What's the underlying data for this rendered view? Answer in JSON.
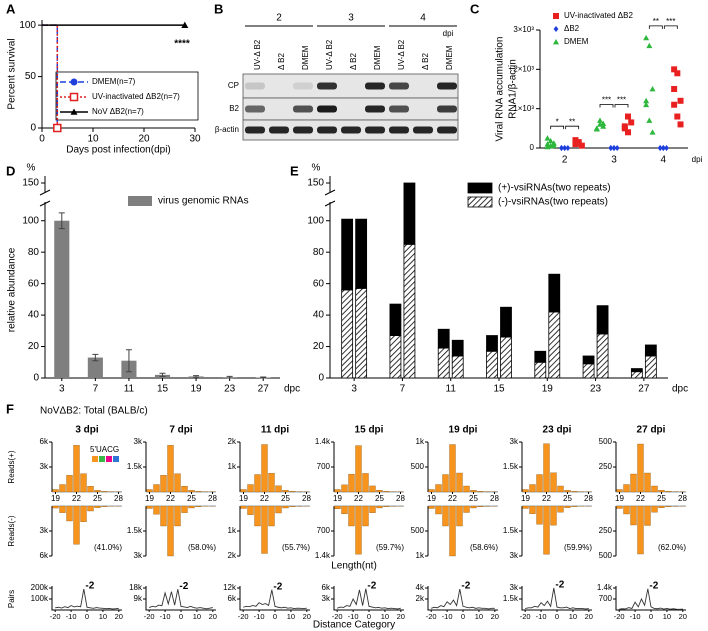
{
  "panel_labels": [
    "A",
    "B",
    "C",
    "D",
    "E",
    "F"
  ],
  "blot": {
    "days": [
      "2",
      "3",
      "4"
    ],
    "unit": "dpi",
    "lanes": [
      "UV-Δ B2",
      "Δ B2",
      "DMEM"
    ],
    "rows": [
      "CP",
      "B2",
      "β-actin"
    ]
  },
  "chart_data": [
    {
      "type": "line",
      "xlabel": "Days post infection(dpi)",
      "ylabel": "Percent survival",
      "annotation": "****",
      "xlim": [
        0,
        30
      ],
      "ylim": [
        0,
        105
      ],
      "xticks": [
        0,
        10,
        20,
        30
      ],
      "yticks": [
        0,
        50,
        100
      ],
      "series": [
        {
          "name": "DMEM(n=7)",
          "color": "#1f3fdc",
          "marker": "circle",
          "line_style": "dashed",
          "x": [
            0,
            3,
            3
          ],
          "values": [
            100,
            100,
            0
          ]
        },
        {
          "name": "UV-inactivated ΔB2(n=7)",
          "color": "#e02020",
          "marker": "open-square",
          "line_style": "dotted",
          "x": [
            0,
            3,
            3
          ],
          "values": [
            100,
            100,
            0
          ]
        },
        {
          "name": "NoV ΔB2(n=7)",
          "color": "#000000",
          "marker": "triangle",
          "line_style": "solid",
          "x": [
            0,
            28
          ],
          "values": [
            100,
            100
          ]
        }
      ]
    },
    {
      "type": "scatter",
      "ylabel": [
        "Viral RNA accumulation",
        "RNA1/β-actin"
      ],
      "xunit": "dpi",
      "categories": [
        "2",
        "3",
        "4"
      ],
      "ylim": [
        0,
        3000
      ],
      "yticks": [
        0,
        {
          "value": 1000,
          "label": "1×10³"
        },
        {
          "value": 2000,
          "label": "2×10³"
        },
        {
          "value": 3000,
          "label": "3×10³"
        }
      ],
      "series": [
        {
          "name": "UV-inactivated ΔB2",
          "color": "#e82020",
          "marker": "square",
          "values": [
            [
              100,
              150,
              60,
              200,
              120
            ],
            [
              500,
              800,
              650,
              550,
              400
            ],
            [
              2000,
              1900,
              1200,
              1100,
              800,
              600,
              1500
            ]
          ]
        },
        {
          "name": "ΔB2",
          "color": "#1f3fdc",
          "marker": "diamond",
          "values": [
            [
              0,
              0,
              0,
              0,
              0
            ],
            [
              0,
              0,
              0,
              0,
              0
            ],
            [
              0,
              0,
              0,
              0,
              0
            ]
          ]
        },
        {
          "name": "DMEM",
          "color": "#2db83d",
          "marker": "triangle",
          "values": [
            [
              100,
              180,
              60,
              250,
              50,
              120,
              30
            ],
            [
              500,
              600,
              550,
              480,
              700,
              620
            ],
            [
              2800,
              2600,
              1500,
              1100,
              700,
              400,
              1200
            ]
          ]
        }
      ],
      "significance": [
        [
          "*",
          "**"
        ],
        [
          "***",
          "***"
        ],
        [
          "**",
          "***"
        ]
      ]
    },
    {
      "type": "bar",
      "ylabel": "relative abundance",
      "yunit": "%",
      "xunit": "dpc",
      "categories": [
        "3",
        "7",
        "11",
        "15",
        "19",
        "23",
        "27"
      ],
      "ylim": [
        0,
        160
      ],
      "ybreak": [
        110,
        140
      ],
      "yticks": [
        0,
        20,
        40,
        60,
        80,
        100,
        150
      ],
      "series": [
        {
          "name": "virus genomic RNAs",
          "color": "#7f7f7f",
          "values": [
            100,
            13,
            11,
            2,
            1,
            0.5,
            0.3
          ],
          "errors": [
            5,
            2,
            7,
            1,
            0.5,
            0.5,
            0.3
          ]
        }
      ]
    },
    {
      "type": "stacked_bar",
      "yunit": "%",
      "xunit": "dpc",
      "categories": [
        "3",
        "7",
        "11",
        "15",
        "19",
        "23",
        "27"
      ],
      "ylim": [
        0,
        160
      ],
      "ybreak": [
        110,
        140
      ],
      "yticks": [
        0,
        20,
        40,
        60,
        80,
        100,
        150
      ],
      "series": [
        {
          "name": "(+)-vsiRNAs(two repeats)",
          "color": "#000000",
          "pattern": "solid",
          "values": [
            [
              45,
              44
            ],
            [
              20,
              65
            ],
            [
              12,
              10
            ],
            [
              10,
              19
            ],
            [
              7,
              24
            ],
            [
              5,
              18
            ],
            [
              2,
              7
            ]
          ]
        },
        {
          "name": "(-)-vsiRNAs(two repeats)",
          "color": "#000000",
          "pattern": "hatch",
          "values": [
            [
              56,
              57
            ],
            [
              27,
              85
            ],
            [
              19,
              14
            ],
            [
              17,
              26
            ],
            [
              10,
              42
            ],
            [
              9,
              28
            ],
            [
              4,
              14
            ]
          ]
        }
      ]
    },
    {
      "type": "small_multiples",
      "title": "NoVΔB2: Total (BALB/c)",
      "reads_plus_label": "Reads(+)",
      "reads_minus_label": "Reads(-)",
      "length_label": "Length(nt)",
      "pairs_label": "Pairs",
      "distance_label": "Distance Category",
      "nucleotide_legend": "5'UACG",
      "nucleotide_colors": [
        "#f7941d",
        "#39b54a",
        "#ec008c",
        "#2e75d6"
      ],
      "bar_color": "#f7941d",
      "line_color": "#333333",
      "peak_label": "-2",
      "length_x": [
        19,
        20,
        21,
        22,
        23,
        24,
        25,
        26,
        27,
        28
      ],
      "length_xlim": [
        18.5,
        28.5
      ],
      "length_xticks": [
        19,
        22,
        25,
        28
      ],
      "distance_x": [
        -20,
        -18,
        -16,
        -14,
        -12,
        -10,
        -8,
        -6,
        -4,
        -2,
        0,
        2,
        4,
        6,
        8,
        10,
        12,
        14,
        16,
        18,
        20
      ],
      "distance_xlim": [
        -22,
        22
      ],
      "distance_xticks": [
        -20,
        -10,
        0,
        10,
        20
      ],
      "panels": [
        {
          "title": "3 dpi",
          "percent": "(41.0%)",
          "reads_ylim": [
            0,
            6000
          ],
          "reads_yticks": [
            {
              "value": 3000,
              "label": "3k"
            },
            {
              "value": 6000,
              "label": "6k"
            }
          ],
          "plus": [
            300,
            900,
            2000,
            5600,
            2200,
            700,
            200,
            80,
            40,
            20
          ],
          "minus": [
            250,
            800,
            1800,
            4600,
            1900,
            600,
            200,
            80,
            40,
            20
          ],
          "pairs_ylim": [
            0,
            200000
          ],
          "pairs_yticks": [
            {
              "value": 100000,
              "label": "100k"
            },
            {
              "value": 200000,
              "label": "200k"
            }
          ],
          "pairs": [
            20000,
            25000,
            18000,
            30000,
            22000,
            40000,
            28000,
            35000,
            30000,
            190000,
            25000,
            20000,
            15000,
            22000,
            18000,
            15000,
            12000,
            14000,
            10000,
            12000,
            15000
          ]
        },
        {
          "title": "7 dpi",
          "percent": "(58.0%)",
          "reads_ylim": [
            0,
            3000
          ],
          "reads_yticks": [
            {
              "value": 1500,
              "label": "1.5k"
            },
            {
              "value": 3000,
              "label": "3k"
            }
          ],
          "plus": [
            150,
            450,
            1000,
            2800,
            1100,
            350,
            100,
            40,
            20,
            10
          ],
          "minus": [
            150,
            500,
            1200,
            3000,
            1200,
            400,
            120,
            50,
            20,
            10
          ],
          "pairs_ylim": [
            0,
            18000
          ],
          "pairs_yticks": [
            {
              "value": 9000,
              "label": "9k"
            },
            {
              "value": 18000,
              "label": "18k"
            }
          ],
          "pairs": [
            2000,
            3000,
            2500,
            4000,
            3500,
            14000,
            5000,
            15000,
            4000,
            17000,
            3000,
            2500,
            2000,
            3000,
            2000,
            1500,
            2000,
            1500,
            1000,
            1500,
            2000
          ]
        },
        {
          "title": "11 dpi",
          "percent": "(55.7%)",
          "reads_ylim": [
            0,
            2000
          ],
          "reads_yticks": [
            {
              "value": 1000,
              "label": "1k"
            },
            {
              "value": 2000,
              "label": "2k"
            }
          ],
          "plus": [
            100,
            300,
            700,
            1900,
            750,
            250,
            70,
            30,
            15,
            8
          ],
          "minus": [
            100,
            350,
            800,
            1900,
            800,
            280,
            80,
            30,
            15,
            8
          ],
          "pairs_ylim": [
            0,
            12000
          ],
          "pairs_yticks": [
            {
              "value": 6000,
              "label": "6k"
            },
            {
              "value": 12000,
              "label": "12k"
            }
          ],
          "pairs": [
            1500,
            2000,
            1800,
            2500,
            2000,
            4000,
            3000,
            3500,
            2500,
            11000,
            2000,
            1500,
            1200,
            1500,
            1000,
            1200,
            800,
            1000,
            900,
            800,
            1000
          ]
        },
        {
          "title": "15 dpi",
          "percent": "(59.7%)",
          "reads_ylim": [
            0,
            1400
          ],
          "reads_yticks": [
            700,
            {
              "value": 1400,
              "label": "1.4k"
            }
          ],
          "plus": [
            70,
            200,
            500,
            1300,
            520,
            170,
            50,
            20,
            10,
            5
          ],
          "minus": [
            80,
            220,
            560,
            1350,
            560,
            190,
            55,
            20,
            10,
            5
          ],
          "pairs_ylim": [
            0,
            6000
          ],
          "pairs_yticks": [
            {
              "value": 3000,
              "label": "3k"
            },
            {
              "value": 6000,
              "label": "6k"
            }
          ],
          "pairs": [
            500,
            800,
            700,
            1200,
            1000,
            3000,
            1500,
            5500,
            1200,
            5800,
            1000,
            800,
            600,
            700,
            500,
            600,
            400,
            500,
            400,
            300,
            500
          ]
        },
        {
          "title": "19 dpi",
          "percent": "(58.6%)",
          "reads_ylim": [
            0,
            1000
          ],
          "reads_yticks": [
            500,
            {
              "value": 1000,
              "label": "1k"
            }
          ],
          "plus": [
            50,
            150,
            350,
            950,
            380,
            120,
            35,
            15,
            8,
            4
          ],
          "minus": [
            50,
            160,
            400,
            1000,
            400,
            130,
            40,
            15,
            8,
            4
          ],
          "pairs_ylim": [
            0,
            4000
          ],
          "pairs_yticks": [
            {
              "value": 2000,
              "label": "2k"
            },
            {
              "value": 4000,
              "label": "4k"
            }
          ],
          "pairs": [
            300,
            500,
            400,
            800,
            600,
            1500,
            1000,
            1800,
            800,
            3800,
            700,
            500,
            400,
            500,
            300,
            400,
            300,
            300,
            200,
            300,
            300
          ]
        },
        {
          "title": "23 dpi",
          "percent": "(59.9%)",
          "reads_ylim": [
            0,
            3000
          ],
          "reads_yticks": [
            {
              "value": 1500,
              "label": "1.5k"
            },
            {
              "value": 3000,
              "label": "3k"
            }
          ],
          "plus": [
            150,
            450,
            1050,
            2900,
            1150,
            360,
            100,
            40,
            20,
            10
          ],
          "minus": [
            150,
            470,
            1100,
            2900,
            1150,
            370,
            100,
            40,
            20,
            10
          ],
          "pairs_ylim": [
            0,
            3000
          ],
          "pairs_yticks": [
            {
              "value": 1500,
              "label": "1.5k"
            },
            {
              "value": 3000,
              "label": "3k"
            }
          ],
          "pairs": [
            200,
            300,
            300,
            500,
            400,
            1000,
            600,
            1200,
            500,
            3000,
            400,
            300,
            300,
            400,
            200,
            300,
            200,
            200,
            200,
            150,
            200
          ]
        },
        {
          "title": "27 dpi",
          "percent": "(62.0%)",
          "reads_ylim": [
            0,
            500
          ],
          "reads_yticks": [
            250,
            500
          ],
          "plus": [
            25,
            75,
            180,
            480,
            190,
            60,
            18,
            8,
            4,
            2
          ],
          "minus": [
            25,
            80,
            190,
            480,
            195,
            62,
            18,
            8,
            4,
            2
          ],
          "pairs_ylim": [
            0,
            1400
          ],
          "pairs_yticks": [
            700,
            {
              "value": 1400,
              "label": "1.4k"
            }
          ],
          "pairs": [
            50,
            80,
            70,
            150,
            100,
            500,
            200,
            700,
            300,
            1350,
            200,
            100,
            80,
            120,
            60,
            100,
            50,
            80,
            50,
            40,
            60
          ]
        }
      ]
    }
  ]
}
